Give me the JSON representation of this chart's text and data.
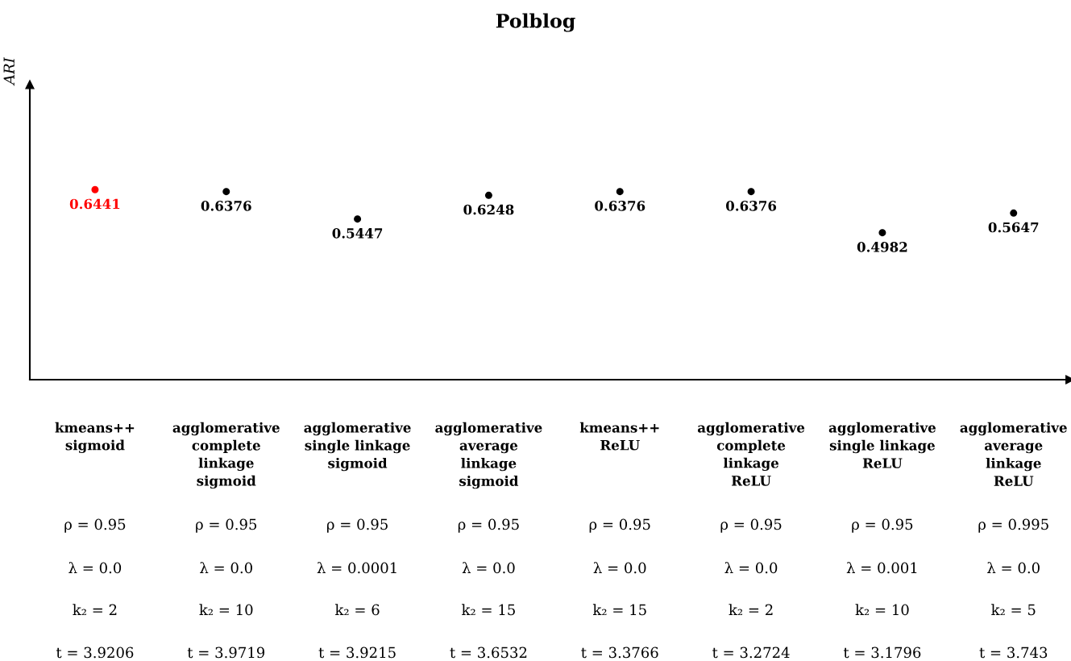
{
  "chart_data": {
    "type": "scatter",
    "title": "Polblog",
    "ylabel": "ARI",
    "categories": [
      "kmeans++\nsigmoid",
      "agglomerative\ncomplete\nlinkage\nsigmoid",
      "agglomerative\nsingle linkage\nsigmoid",
      "agglomerative\naverage\nlinkage\nsigmoid",
      "kmeans++\nReLU",
      "agglomerative\ncomplete\nlinkage\nReLU",
      "agglomerative\nsingle linkage\nReLU",
      "agglomerative\naverage\nlinkage\nReLU"
    ],
    "values": [
      0.6441,
      0.6376,
      0.5447,
      0.6248,
      0.6376,
      0.6376,
      0.4982,
      0.5647
    ],
    "colors": [
      "#ff0000",
      "#000000",
      "#000000",
      "#000000",
      "#000000",
      "#000000",
      "#000000",
      "#000000"
    ],
    "ylim": [
      0,
      1
    ],
    "data_labels": true,
    "marker": "circle",
    "grid": false,
    "annotations": [
      "ρ = 0.95",
      "λ = 0.0",
      "k₂ = 2",
      "t = 3.9206",
      "ρ = 0.95",
      "λ = 0.0",
      "k₂ = 10",
      "t = 3.9719",
      "ρ = 0.95",
      "λ = 0.0001",
      "k₂ = 6",
      "t = 3.9215",
      "ρ = 0.95",
      "λ = 0.0",
      "k₂ = 15",
      "t = 3.6532",
      "ρ = 0.95",
      "λ = 0.0",
      "k₂ = 15",
      "t = 3.3766",
      "ρ = 0.95",
      "λ = 0.0",
      "k₂ = 2",
      "t = 3.2724",
      "ρ = 0.95",
      "λ = 0.001",
      "k₂ = 10",
      "t = 3.1796",
      "ρ = 0.995",
      "λ = 0.0",
      "k₂ = 5",
      "t = 3.743"
    ]
  }
}
